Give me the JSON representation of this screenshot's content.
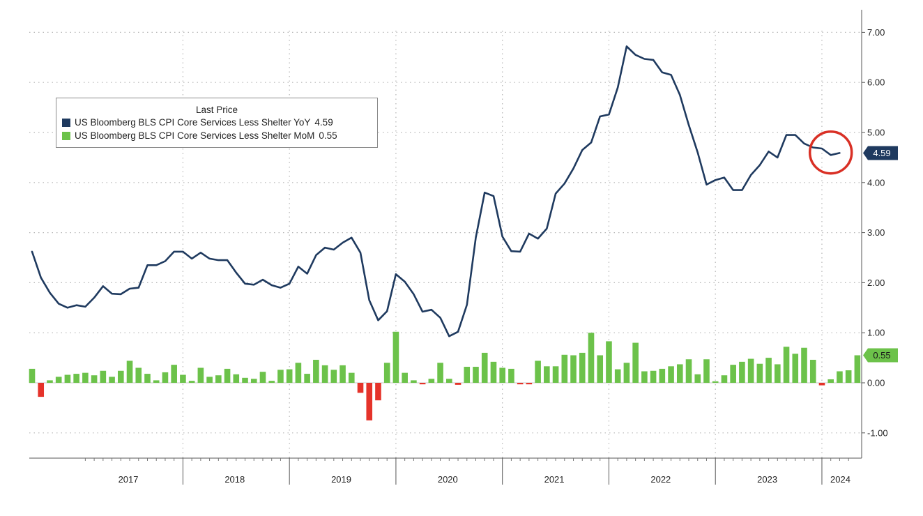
{
  "legend": {
    "title": "Last Price",
    "series": [
      {
        "name": "US Bloomberg BLS CPI Core Services Less Shelter YoY",
        "value": "4.59",
        "color": "#1f3a5f"
      },
      {
        "name": "US Bloomberg BLS CPI Core Services Less Shelter MoM",
        "value": "0.55",
        "color": "#6cc24a"
      }
    ]
  },
  "last_value_tags": [
    {
      "label": "4.59",
      "color": "#1f3a5f",
      "text_color": "#ffffff"
    },
    {
      "label": "0.55",
      "color": "#6cc24a",
      "text_color": "#1a1a1a"
    }
  ],
  "highlight": {
    "shape": "circle",
    "color": "#d93025"
  },
  "chart_data": {
    "type": "line",
    "title": "",
    "xlabel": "",
    "ylabel": "",
    "x_ticks": [
      "2017",
      "2018",
      "2019",
      "2020",
      "2021",
      "2022",
      "2023",
      "2024"
    ],
    "y_ticks": [
      "-1.00",
      "0.00",
      "1.00",
      "2.00",
      "3.00",
      "4.00",
      "5.00",
      "6.00",
      "7.00"
    ],
    "ylim": [
      -1.5,
      7.4
    ],
    "grid": true,
    "y_axis_side": "right",
    "legend_position": "top-left",
    "x_start": "2016-08",
    "series": [
      {
        "name": "US Bloomberg BLS CPI Core Services Less Shelter YoY",
        "type": "line",
        "color": "#1f3a5f",
        "values": [
          2.62,
          2.1,
          1.8,
          1.58,
          1.5,
          1.55,
          1.52,
          1.7,
          1.93,
          1.78,
          1.77,
          1.88,
          1.9,
          2.35,
          2.35,
          2.43,
          2.62,
          2.62,
          2.48,
          2.6,
          2.48,
          2.45,
          2.45,
          2.2,
          1.98,
          1.96,
          2.06,
          1.95,
          1.9,
          1.98,
          2.32,
          2.18,
          2.55,
          2.7,
          2.66,
          2.8,
          2.9,
          2.6,
          1.65,
          1.25,
          1.43,
          2.17,
          2.02,
          1.77,
          1.42,
          1.46,
          1.3,
          0.93,
          1.02,
          1.56,
          2.9,
          3.8,
          3.73,
          2.92,
          2.63,
          2.62,
          2.98,
          2.88,
          3.08,
          3.78,
          3.98,
          4.28,
          4.65,
          4.8,
          5.32,
          5.36,
          5.9,
          6.72,
          6.55,
          6.47,
          6.45,
          6.2,
          6.15,
          5.75,
          5.15,
          4.6,
          3.96,
          4.05,
          4.1,
          3.85,
          3.85,
          4.15,
          4.35,
          4.62,
          4.5,
          4.95,
          4.95,
          4.78,
          4.7,
          4.68,
          4.55,
          4.59
        ]
      },
      {
        "name": "US Bloomberg BLS CPI Core Services Less Shelter MoM",
        "type": "bar",
        "color_positive": "#6cc24a",
        "color_negative": "#e5332a",
        "values": [
          0.28,
          -0.28,
          0.05,
          0.12,
          0.16,
          0.18,
          0.2,
          0.15,
          0.24,
          0.12,
          0.24,
          0.44,
          0.3,
          0.18,
          0.05,
          0.21,
          0.36,
          0.16,
          0.04,
          0.3,
          0.12,
          0.15,
          0.28,
          0.17,
          0.1,
          0.08,
          0.22,
          0.04,
          0.26,
          0.27,
          0.4,
          0.18,
          0.46,
          0.35,
          0.26,
          0.35,
          0.2,
          -0.2,
          -0.75,
          -0.35,
          0.4,
          1.02,
          0.2,
          0.05,
          -0.03,
          0.08,
          0.4,
          0.08,
          -0.04,
          0.32,
          0.32,
          0.6,
          0.42,
          0.3,
          0.28,
          -0.03,
          -0.03,
          0.44,
          0.33,
          0.33,
          0.56,
          0.55,
          0.6,
          1.0,
          0.55,
          0.83,
          0.27,
          0.4,
          0.8,
          0.23,
          0.24,
          0.28,
          0.33,
          0.37,
          0.47,
          0.17,
          0.47,
          0.03,
          0.15,
          0.36,
          0.42,
          0.48,
          0.38,
          0.5,
          0.37,
          0.72,
          0.58,
          0.7,
          0.46,
          -0.05,
          0.07,
          0.23,
          0.25,
          0.55
        ]
      }
    ]
  }
}
